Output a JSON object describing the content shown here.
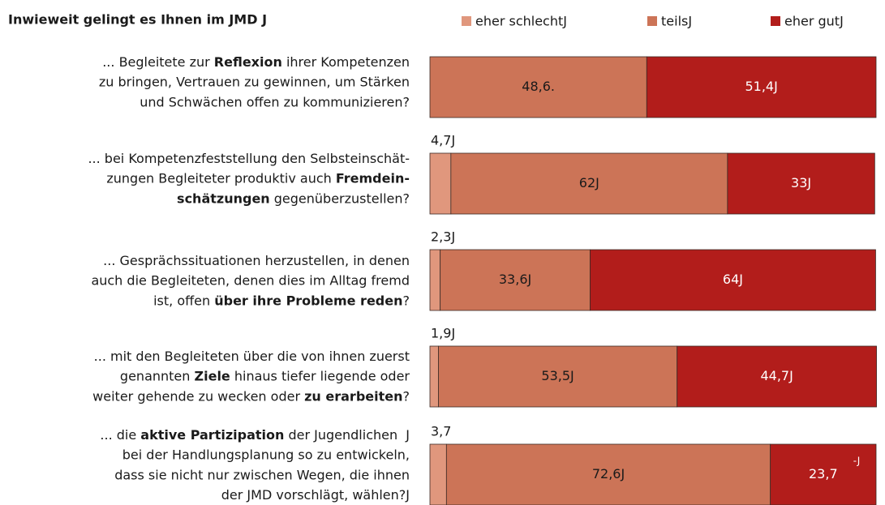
{
  "chart_data": {
    "type": "stacked-bar-horizontal",
    "title": "Inwieweit gelingt es Ihnen im JMD J",
    "categories": [
      [
        [
          {
            "text": "... Begleitete zur "
          },
          {
            "text": "Reflexion",
            "bold": true
          },
          {
            "text": " ihrer Kompetenzen"
          }
        ],
        [
          {
            "text": "zu bringen, Vertrauen zu gewinnen, um Stärken"
          }
        ],
        [
          {
            "text": "und Schwächen offen zu kommunizieren?"
          }
        ]
      ],
      [
        [
          {
            "text": "... bei Kompetenzfeststellung den Selbsteinschät-"
          }
        ],
        [
          {
            "text": "zungen Begleiteter produktiv auch "
          },
          {
            "text": "Fremdein-",
            "bold": true
          }
        ],
        [
          {
            "text": "schätzungen",
            "bold": true
          },
          {
            "text": " gegenüberzustellen?"
          }
        ]
      ],
      [
        [
          {
            "text": "... Gesprächssituationen herzustellen, in denen"
          }
        ],
        [
          {
            "text": "auch die Begleiteten, denen dies im Alltag fremd"
          }
        ],
        [
          {
            "text": "ist, offen "
          },
          {
            "text": "über ihre Probleme reden",
            "bold": true
          },
          {
            "text": "?"
          }
        ]
      ],
      [
        [
          {
            "text": "... mit den Begleiteten über die von ihnen zuerst"
          }
        ],
        [
          {
            "text": "genannten "
          },
          {
            "text": "Ziele",
            "bold": true
          },
          {
            "text": " hinaus tiefer liegende oder"
          }
        ],
        [
          {
            "text": "weiter gehende zu wecken oder "
          },
          {
            "text": "zu erarbeiten",
            "bold": true
          },
          {
            "text": "?"
          }
        ]
      ],
      [
        [
          {
            "text": "... die "
          },
          {
            "text": "aktive Partizipation",
            "bold": true
          },
          {
            "text": " der Jugendlichen  J"
          }
        ],
        [
          {
            "text": "bei der Handlungsplanung so zu entwickeln,"
          }
        ],
        [
          {
            "text": "dass sie nicht nur zwischen Wegen, die ihnen"
          }
        ],
        [
          {
            "text": "der JMD vorschlägt, wählen?J"
          }
        ]
      ]
    ],
    "series": [
      {
        "name": "eher schlechtJ",
        "color": "#e0977d",
        "values": [
          0,
          4.7,
          2.3,
          1.9,
          3.7
        ],
        "value_labels": [
          null,
          "4,7J",
          "2,3J",
          "1,9J",
          "3,7"
        ]
      },
      {
        "name": "teilsJ",
        "color": "#cc7457",
        "values": [
          48.6,
          62,
          33.6,
          53.5,
          72.6
        ],
        "value_labels": [
          "48,6.",
          "62J",
          "33,6J",
          "53,5J",
          "72,6J"
        ]
      },
      {
        "name": "eher gutJ",
        "color": "#b21d1b",
        "values": [
          51.4,
          33,
          64,
          44.7,
          23.7
        ],
        "value_labels": [
          "51,4J",
          "33J",
          "64J",
          "44,7J",
          "23,7"
        ]
      }
    ],
    "annotations": [
      "-J"
    ],
    "xlim": [
      0,
      100
    ]
  }
}
